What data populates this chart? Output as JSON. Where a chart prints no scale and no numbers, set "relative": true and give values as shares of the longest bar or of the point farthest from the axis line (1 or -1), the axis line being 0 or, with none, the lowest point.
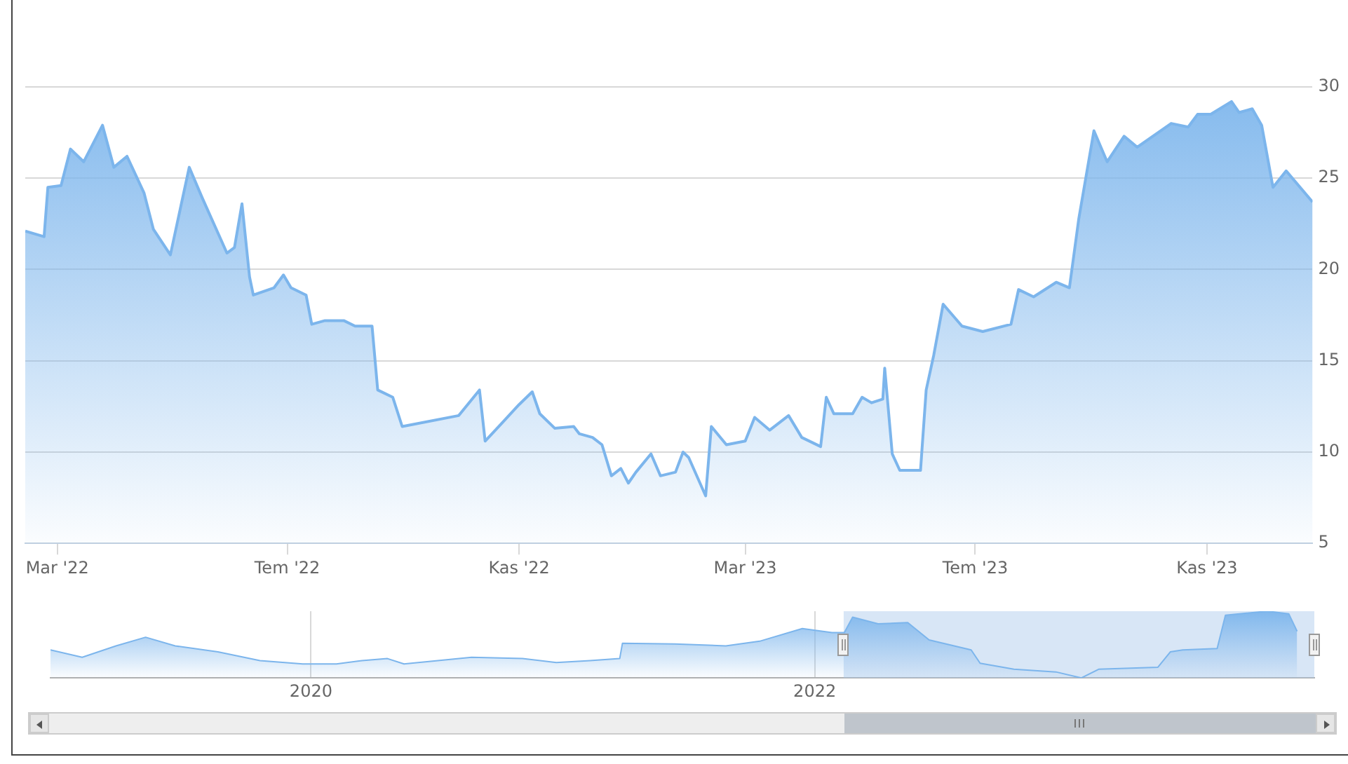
{
  "chart_data": [
    {
      "type": "area",
      "xlim": [
        "2022-02-12",
        "2023-12-27"
      ],
      "xticks": [
        {
          "value": "2022-03-01",
          "label": "Mar '22"
        },
        {
          "value": "2022-07-01",
          "label": "Tem '22"
        },
        {
          "value": "2022-11-01",
          "label": "Kas '22"
        },
        {
          "value": "2023-03-01",
          "label": "Mar '23"
        },
        {
          "value": "2023-07-01",
          "label": "Tem '23"
        },
        {
          "value": "2023-11-01",
          "label": "Kas '23"
        }
      ],
      "ylim": [
        5,
        30
      ],
      "yticks": [
        5,
        10,
        15,
        20,
        25,
        30
      ],
      "grid": "y",
      "series": [
        {
          "color": "#7cb5ec",
          "x": [
            "2022-02-12",
            "2022-02-22",
            "2022-02-24",
            "2022-03-03",
            "2022-03-08",
            "2022-03-15",
            "2022-03-25",
            "2022-03-31",
            "2022-04-07",
            "2022-04-16",
            "2022-04-21",
            "2022-04-30",
            "2022-05-10",
            "2022-05-17",
            "2022-05-30",
            "2022-06-03",
            "2022-06-07",
            "2022-06-11",
            "2022-06-13",
            "2022-06-24",
            "2022-06-29",
            "2022-07-03",
            "2022-07-11",
            "2022-07-14",
            "2022-07-21",
            "2022-07-31",
            "2022-08-06",
            "2022-08-15",
            "2022-08-18",
            "2022-08-26",
            "2022-08-31",
            "2022-09-30",
            "2022-10-11",
            "2022-10-14",
            "2022-10-23",
            "2022-11-01",
            "2022-11-08",
            "2022-11-12",
            "2022-11-20",
            "2022-11-30",
            "2022-12-03",
            "2022-12-10",
            "2022-12-15",
            "2022-12-20",
            "2022-12-25",
            "2022-12-29",
            "2023-01-02",
            "2023-01-10",
            "2023-01-15",
            "2023-01-23",
            "2023-01-27",
            "2023-01-30",
            "2023-02-08",
            "2023-02-11",
            "2023-02-19",
            "2023-03-01",
            "2023-03-06",
            "2023-03-14",
            "2023-03-24",
            "2023-03-31",
            "2023-04-10",
            "2023-04-13",
            "2023-04-17",
            "2023-04-27",
            "2023-05-02",
            "2023-05-07",
            "2023-05-13",
            "2023-05-14",
            "2023-05-18",
            "2023-05-22",
            "2023-06-02",
            "2023-06-05",
            "2023-06-09",
            "2023-06-14",
            "2023-06-24",
            "2023-07-05",
            "2023-07-20",
            "2023-07-24",
            "2023-08-01",
            "2023-08-13",
            "2023-08-20",
            "2023-08-25",
            "2023-09-02",
            "2023-09-09",
            "2023-09-18",
            "2023-09-25",
            "2023-10-13",
            "2023-10-22",
            "2023-10-27",
            "2023-11-03",
            "2023-11-14",
            "2023-11-18",
            "2023-11-25",
            "2023-11-30",
            "2023-12-06",
            "2023-12-13",
            "2023-12-27"
          ],
          "values": [
            22.1,
            21.8,
            24.5,
            24.6,
            26.6,
            25.9,
            27.9,
            25.6,
            26.2,
            24.2,
            22.2,
            20.8,
            25.6,
            23.9,
            20.9,
            21.2,
            23.6,
            19.6,
            18.6,
            19.0,
            19.7,
            19.0,
            18.6,
            17.0,
            17.2,
            17.2,
            16.9,
            16.9,
            13.4,
            13.0,
            11.4,
            12.0,
            13.4,
            10.6,
            11.6,
            12.6,
            13.3,
            12.1,
            11.3,
            11.4,
            11.0,
            10.8,
            10.4,
            8.7,
            9.1,
            8.3,
            8.9,
            9.9,
            8.7,
            8.9,
            10.0,
            9.7,
            7.6,
            11.4,
            10.4,
            10.6,
            11.9,
            11.2,
            12.0,
            10.8,
            10.3,
            13.0,
            12.1,
            12.1,
            13.0,
            12.7,
            12.9,
            14.6,
            9.9,
            9.0,
            9.0,
            13.4,
            15.3,
            18.1,
            16.9,
            16.6,
            17.0,
            18.9,
            18.5,
            19.3,
            19.0,
            22.8,
            27.6,
            25.9,
            27.3,
            26.7,
            28.0,
            27.8,
            28.5,
            28.5,
            29.2,
            28.6,
            28.8,
            27.9,
            24.5,
            25.4,
            23.7
          ]
        }
      ]
    },
    {
      "type": "area",
      "relative": true,
      "xlim": [
        "2018-12-19",
        "2023-12-27"
      ],
      "xticks": [
        {
          "value": "2020-01-01",
          "label": "2020"
        },
        {
          "value": "2022-01-01",
          "label": "2022"
        }
      ],
      "grid": "x",
      "bands": [
        {
          "axis": "x",
          "from": "2022-02-12",
          "to": "2023-12-27",
          "color": "#a9c8ec"
        }
      ],
      "series": [
        {
          "color": "#7cb5ec",
          "x": [
            "2018-12-19",
            "2019-02-03",
            "2019-03-24",
            "2019-05-06",
            "2019-06-18",
            "2019-08-19",
            "2019-10-19",
            "2019-12-20",
            "2020-02-07",
            "2020-03-15",
            "2020-04-21",
            "2020-05-15",
            "2020-07-03",
            "2020-08-21",
            "2020-11-03",
            "2020-12-22",
            "2021-02-09",
            "2021-03-24",
            "2021-03-28",
            "2021-06-12",
            "2021-08-25",
            "2021-10-13",
            "2021-12-14",
            "2022-01-26",
            "2022-02-13",
            "2022-02-25",
            "2022-04-03",
            "2022-05-16",
            "2022-06-16",
            "2022-08-16",
            "2022-08-29",
            "2022-10-17",
            "2022-12-17",
            "2023-01-23",
            "2023-02-17",
            "2023-05-14",
            "2023-06-01",
            "2023-06-19",
            "2023-08-08",
            "2023-08-20",
            "2023-10-20",
            "2023-11-20",
            "2023-12-02"
          ],
          "values": [
            0.42,
            0.31,
            0.48,
            0.61,
            0.48,
            0.39,
            0.26,
            0.21,
            0.21,
            0.26,
            0.29,
            0.21,
            0.26,
            0.31,
            0.29,
            0.23,
            0.26,
            0.29,
            0.52,
            0.51,
            0.48,
            0.55,
            0.74,
            0.68,
            0.68,
            0.91,
            0.81,
            0.83,
            0.57,
            0.42,
            0.22,
            0.13,
            0.09,
            0,
            0.13,
            0.16,
            0.39,
            0.42,
            0.44,
            0.94,
            1,
            0.96,
            0.7
          ]
        }
      ]
    }
  ]
}
